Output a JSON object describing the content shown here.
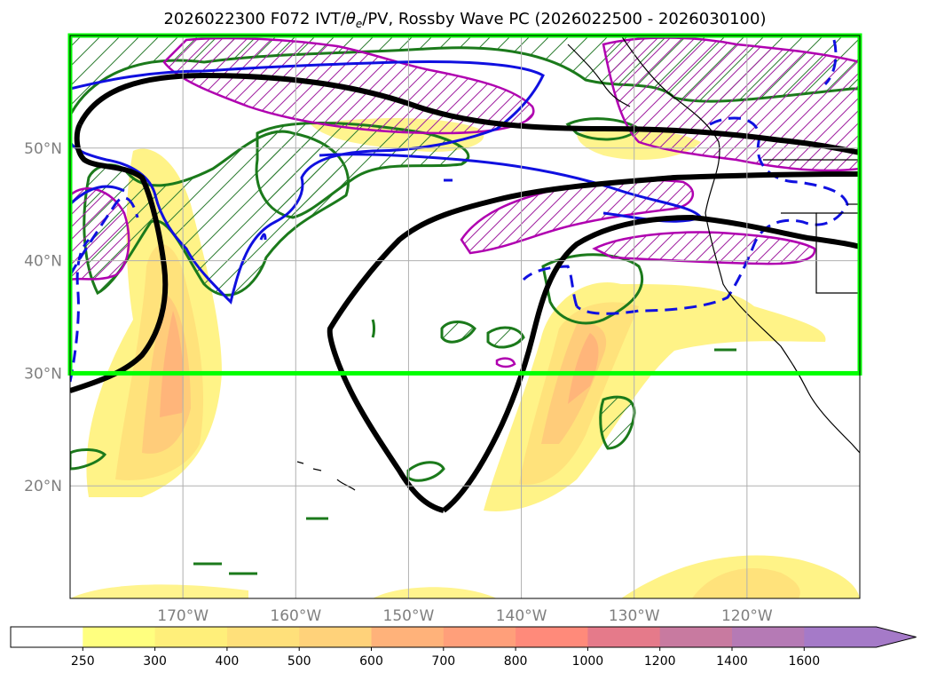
{
  "chart_data": {
    "type": "contour-map",
    "title": "2026022300 F072 IVT/θe/PV, Rossby Wave PC (2026022500 - 2026030100)",
    "title_parts": {
      "pre": "2026022300 F072 IVT/",
      "theta": "θ",
      "theta_sub": "e",
      "post": "/PV, Rossby Wave PC (2026022500 - 2026030100)"
    },
    "lon_range": [
      -180,
      -110
    ],
    "lat_range": [
      10,
      60
    ],
    "lat_ticks": [
      {
        "value": 50,
        "label": "50°N"
      },
      {
        "value": 40,
        "label": "40°N"
      },
      {
        "value": 30,
        "label": "30°N"
      },
      {
        "value": 20,
        "label": "20°N"
      }
    ],
    "lon_ticks": [
      {
        "value": -170,
        "label": "170°W"
      },
      {
        "value": -160,
        "label": "160°W"
      },
      {
        "value": -150,
        "label": "150°W"
      },
      {
        "value": -140,
        "label": "140°W"
      },
      {
        "value": -130,
        "label": "130°W"
      },
      {
        "value": -120,
        "label": "120°W"
      }
    ],
    "highlight_box": {
      "lon": [
        -180,
        -110
      ],
      "lat": [
        30,
        60
      ],
      "color": "#00ff00"
    },
    "colorbar": {
      "levels": [
        "250",
        "300",
        "400",
        "500",
        "600",
        "700",
        "800",
        "1000",
        "1200",
        "1400",
        "1600"
      ],
      "colors": [
        "#ffffff",
        "#ffff7f",
        "#ffef7a",
        "#ffe07a",
        "#ffd27a",
        "#ffb27a",
        "#ff9f7a",
        "#ff8a7a",
        "#e57a8a",
        "#c87aa0",
        "#b57ab5",
        "#a57ac8"
      ],
      "extend": "max"
    }
  }
}
